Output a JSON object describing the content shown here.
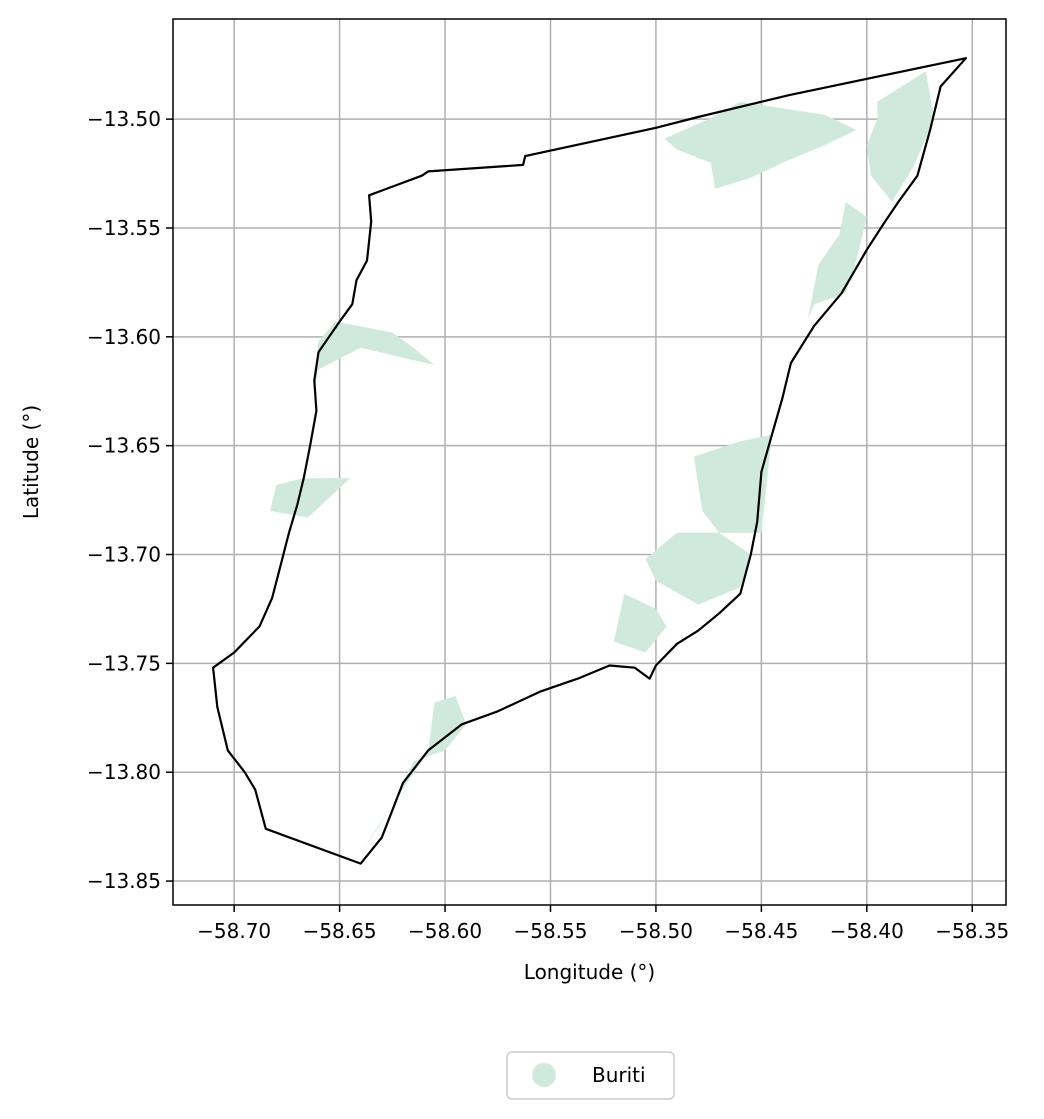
{
  "chart_data": {
    "type": "map",
    "title": "",
    "xlabel": "Longitude (°)",
    "ylabel": "Latitude (°)",
    "xlim": [
      -58.729,
      -58.334
    ],
    "ylim": [
      -13.861,
      -13.454
    ],
    "grid": true,
    "legend_placement": "bottom-center",
    "x_ticks": [
      -58.7,
      -58.65,
      -58.6,
      -58.55,
      -58.5,
      -58.45,
      -58.4,
      -58.35
    ],
    "x_tick_labels": [
      "−58.70",
      "−58.65",
      "−58.60",
      "−58.55",
      "−58.50",
      "−58.45",
      "−58.40",
      "−58.35"
    ],
    "y_ticks": [
      -13.5,
      -13.55,
      -13.6,
      -13.65,
      -13.7,
      -13.75,
      -13.8,
      -13.85
    ],
    "y_tick_labels": [
      "−13.50",
      "−13.55",
      "−13.60",
      "−13.65",
      "−13.70",
      "−13.75",
      "−13.80",
      "−13.85"
    ],
    "colors": {
      "boundary": "#000000",
      "buriti": "#cfeadc",
      "grid": "#b0b0b0"
    },
    "series": [
      {
        "name": "Buriti",
        "color": "#cfeadc"
      }
    ],
    "boundary": [
      [
        -58.353,
        -13.472
      ],
      [
        -58.437,
        -13.489
      ],
      [
        -58.48,
        -13.499
      ],
      [
        -58.5,
        -13.504
      ],
      [
        -58.562,
        -13.517
      ],
      [
        -58.563,
        -13.521
      ],
      [
        -58.608,
        -13.524
      ],
      [
        -58.611,
        -13.526
      ],
      [
        -58.636,
        -13.535
      ],
      [
        -58.635,
        -13.547
      ],
      [
        -58.637,
        -13.565
      ],
      [
        -58.642,
        -13.574
      ],
      [
        -58.644,
        -13.585
      ],
      [
        -58.65,
        -13.593
      ],
      [
        -58.655,
        -13.6
      ],
      [
        -58.66,
        -13.607
      ],
      [
        -58.662,
        -13.62
      ],
      [
        -58.661,
        -13.634
      ],
      [
        -58.664,
        -13.65
      ],
      [
        -58.667,
        -13.665
      ],
      [
        -58.67,
        -13.677
      ],
      [
        -58.674,
        -13.69
      ],
      [
        -58.678,
        -13.705
      ],
      [
        -58.682,
        -13.72
      ],
      [
        -58.688,
        -13.733
      ],
      [
        -58.7,
        -13.745
      ],
      [
        -58.71,
        -13.752
      ],
      [
        -58.708,
        -13.77
      ],
      [
        -58.703,
        -13.79
      ],
      [
        -58.695,
        -13.8
      ],
      [
        -58.69,
        -13.808
      ],
      [
        -58.685,
        -13.826
      ],
      [
        -58.64,
        -13.842
      ],
      [
        -58.63,
        -13.83
      ],
      [
        -58.62,
        -13.805
      ],
      [
        -58.608,
        -13.79
      ],
      [
        -58.592,
        -13.778
      ],
      [
        -58.575,
        -13.772
      ],
      [
        -58.555,
        -13.763
      ],
      [
        -58.537,
        -13.757
      ],
      [
        -58.522,
        -13.751
      ],
      [
        -58.51,
        -13.752
      ],
      [
        -58.503,
        -13.757
      ],
      [
        -58.5,
        -13.751
      ],
      [
        -58.49,
        -13.741
      ],
      [
        -58.48,
        -13.735
      ],
      [
        -58.47,
        -13.727
      ],
      [
        -58.46,
        -13.718
      ],
      [
        -58.455,
        -13.7
      ],
      [
        -58.452,
        -13.685
      ],
      [
        -58.45,
        -13.662
      ],
      [
        -58.445,
        -13.645
      ],
      [
        -58.44,
        -13.628
      ],
      [
        -58.436,
        -13.612
      ],
      [
        -58.425,
        -13.595
      ],
      [
        -58.412,
        -13.58
      ],
      [
        -58.4,
        -13.56
      ],
      [
        -58.392,
        -13.548
      ],
      [
        -58.385,
        -13.538
      ],
      [
        -58.376,
        -13.526
      ],
      [
        -58.37,
        -13.505
      ],
      [
        -58.365,
        -13.485
      ],
      [
        -58.353,
        -13.472
      ]
    ],
    "buriti_areas": [
      [
        [
          -58.46,
          -13.492
        ],
        [
          -58.42,
          -13.498
        ],
        [
          -58.405,
          -13.505
        ],
        [
          -58.42,
          -13.512
        ],
        [
          -58.44,
          -13.52
        ],
        [
          -58.455,
          -13.527
        ],
        [
          -58.472,
          -13.532
        ],
        [
          -58.474,
          -13.52
        ],
        [
          -58.49,
          -13.514
        ],
        [
          -58.496,
          -13.509
        ],
        [
          -58.475,
          -13.5
        ]
      ],
      [
        [
          -58.395,
          -13.492
        ],
        [
          -58.372,
          -13.478
        ],
        [
          -58.368,
          -13.5
        ],
        [
          -58.378,
          -13.522
        ],
        [
          -58.388,
          -13.538
        ],
        [
          -58.398,
          -13.526
        ],
        [
          -58.4,
          -13.512
        ],
        [
          -58.395,
          -13.5
        ]
      ],
      [
        [
          -58.41,
          -13.538
        ],
        [
          -58.4,
          -13.545
        ],
        [
          -58.405,
          -13.565
        ],
        [
          -58.41,
          -13.58
        ],
        [
          -58.425,
          -13.585
        ],
        [
          -58.428,
          -13.592
        ],
        [
          -58.423,
          -13.567
        ],
        [
          -58.413,
          -13.553
        ]
      ],
      [
        [
          -58.652,
          -13.593
        ],
        [
          -58.625,
          -13.598
        ],
        [
          -58.615,
          -13.605
        ],
        [
          -58.605,
          -13.613
        ],
        [
          -58.64,
          -13.605
        ],
        [
          -58.66,
          -13.615
        ],
        [
          -58.662,
          -13.625
        ],
        [
          -58.66,
          -13.602
        ]
      ],
      [
        [
          -58.667,
          -13.665
        ],
        [
          -58.645,
          -13.665
        ],
        [
          -58.665,
          -13.683
        ],
        [
          -58.683,
          -13.68
        ],
        [
          -58.68,
          -13.668
        ]
      ],
      [
        [
          -58.445,
          -13.645
        ],
        [
          -58.46,
          -13.648
        ],
        [
          -58.482,
          -13.655
        ],
        [
          -58.478,
          -13.68
        ],
        [
          -58.47,
          -13.69
        ],
        [
          -58.455,
          -13.7
        ],
        [
          -58.46,
          -13.715
        ],
        [
          -58.48,
          -13.723
        ],
        [
          -58.5,
          -13.712
        ],
        [
          -58.505,
          -13.702
        ],
        [
          -58.49,
          -13.69
        ],
        [
          -58.45,
          -13.69
        ]
      ],
      [
        [
          -58.5,
          -13.725
        ],
        [
          -58.515,
          -13.718
        ],
        [
          -58.52,
          -13.74
        ],
        [
          -58.505,
          -13.745
        ],
        [
          -58.495,
          -13.733
        ]
      ],
      [
        [
          -58.605,
          -13.768
        ],
        [
          -58.595,
          -13.765
        ],
        [
          -58.59,
          -13.778
        ],
        [
          -58.6,
          -13.79
        ],
        [
          -58.615,
          -13.795
        ],
        [
          -58.625,
          -13.815
        ],
        [
          -58.64,
          -13.838
        ],
        [
          -58.632,
          -13.825
        ],
        [
          -58.618,
          -13.805
        ],
        [
          -58.608,
          -13.79
        ]
      ]
    ]
  }
}
